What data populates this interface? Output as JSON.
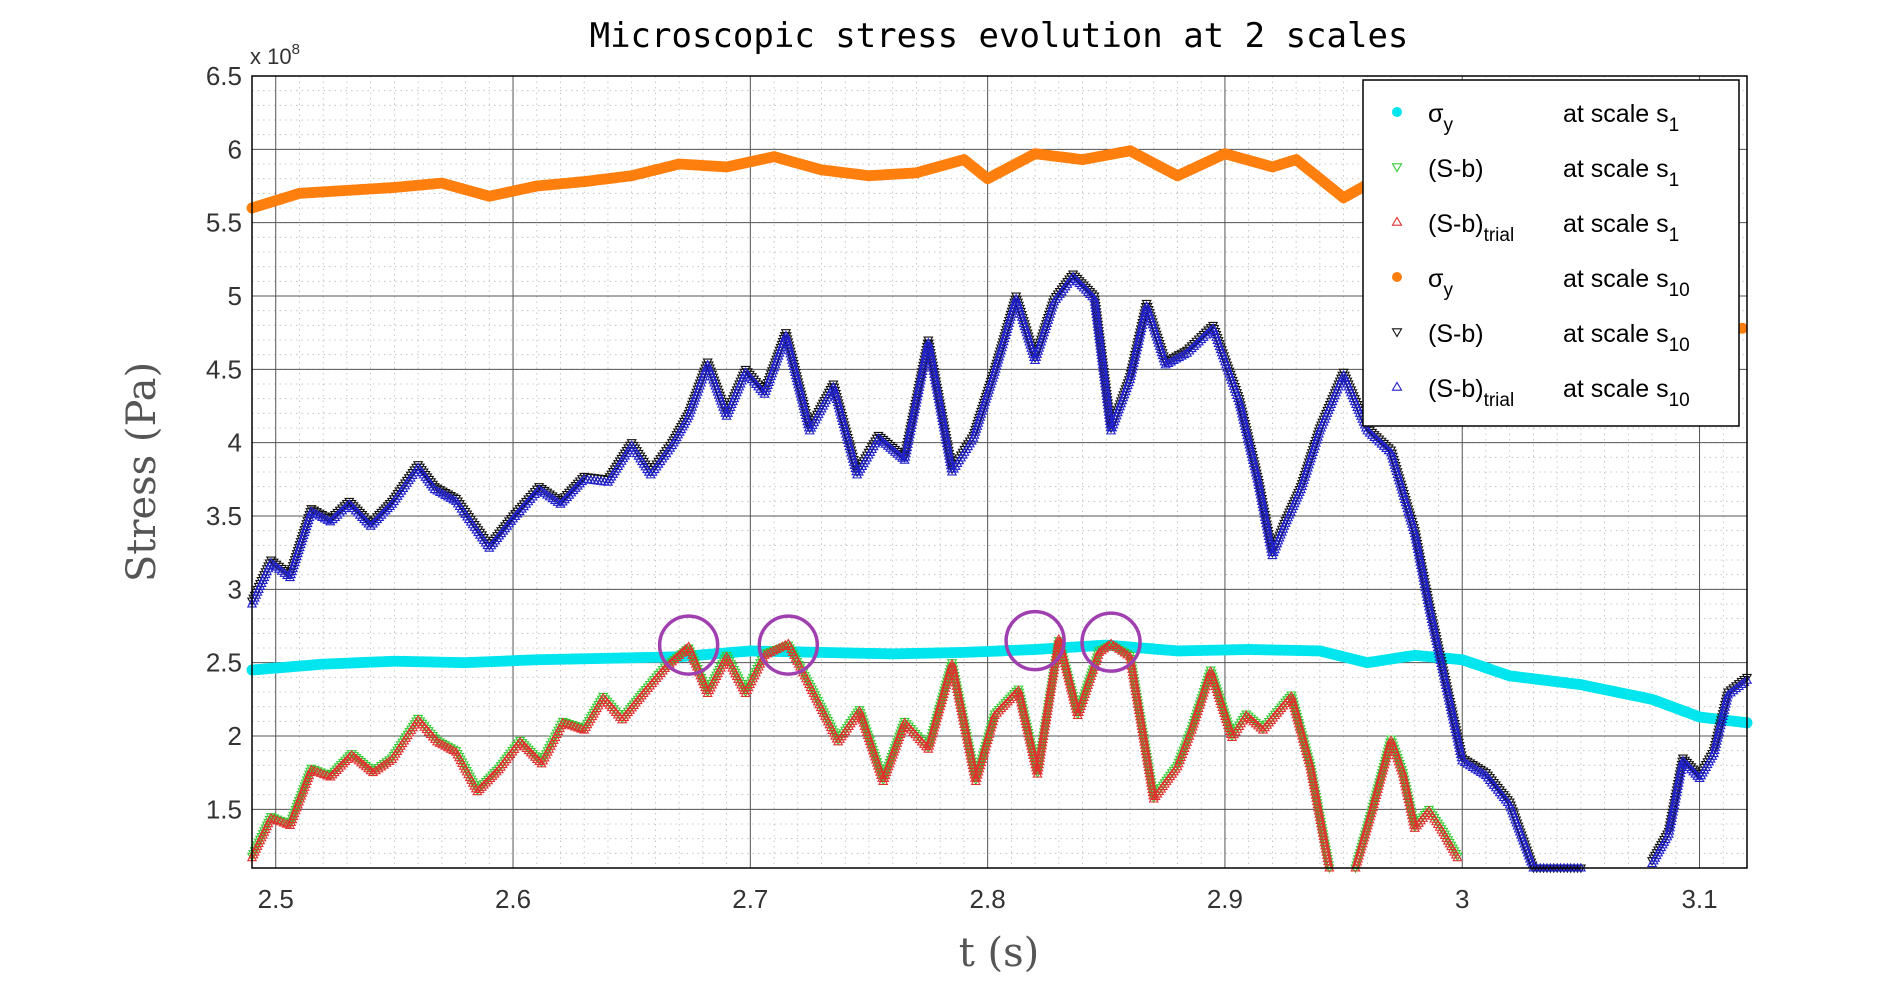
{
  "chart_data": {
    "type": "scatter",
    "title": "Microscopic stress evolution at 2 scales",
    "xlabel": "t (s)",
    "ylabel": "Stress (Pa)",
    "y_multiplier_label": "x 10",
    "y_multiplier_exponent": "8",
    "xlim": [
      2.49,
      3.12
    ],
    "ylim": [
      1.1,
      6.5
    ],
    "x_ticks": [
      "2.5",
      "2.6",
      "2.7",
      "2.8",
      "2.9",
      "3",
      "3.1"
    ],
    "x_tick_values": [
      2.5,
      2.6,
      2.7,
      2.8,
      2.9,
      3.0,
      3.1
    ],
    "y_ticks": [
      "1.5",
      "2",
      "2.5",
      "3",
      "3.5",
      "4",
      "4.5",
      "5",
      "5.5",
      "6",
      "6.5"
    ],
    "y_tick_values": [
      1.5,
      2.0,
      2.5,
      3.0,
      3.5,
      4.0,
      4.5,
      5.0,
      5.5,
      6.0,
      6.5
    ],
    "y_unit_scale": "1e8 Pa",
    "grid": true,
    "legend_position": "top-right",
    "series": [
      {
        "name": "σy at scale s1",
        "legend_main": "σ",
        "legend_sub": "y",
        "legend_suffix": "at scale s",
        "legend_suffix_sub": "1",
        "color": "#00e5ee",
        "marker": "dot",
        "x": [
          2.49,
          2.52,
          2.55,
          2.58,
          2.61,
          2.64,
          2.67,
          2.7,
          2.73,
          2.76,
          2.79,
          2.82,
          2.85,
          2.88,
          2.91,
          2.94,
          2.96,
          2.98,
          3.0,
          3.02,
          3.05,
          3.08,
          3.1,
          3.12
        ],
        "y": [
          2.45,
          2.49,
          2.51,
          2.5,
          2.52,
          2.53,
          2.54,
          2.58,
          2.57,
          2.56,
          2.57,
          2.59,
          2.62,
          2.58,
          2.59,
          2.58,
          2.5,
          2.55,
          2.52,
          2.41,
          2.35,
          2.25,
          2.13,
          2.09
        ]
      },
      {
        "name": "(S-b) at scale s1",
        "legend_main": "(S-b)",
        "legend_sub": "",
        "legend_suffix": "at scale s",
        "legend_suffix_sub": "1",
        "color": "#33cc33",
        "marker": "triangle-down",
        "segments": [
          {
            "x": [
              2.49,
              2.498,
              2.506,
              2.515,
              2.523,
              2.532,
              2.541,
              2.549,
              2.56,
              2.568,
              2.576,
              2.585,
              2.594,
              2.603,
              2.612,
              2.621,
              2.63,
              2.638,
              2.646,
              2.655,
              2.664,
              2.674,
              2.682,
              2.69,
              2.698,
              2.706,
              2.716,
              2.726,
              2.737,
              2.746,
              2.756,
              2.765,
              2.775,
              2.785,
              2.795,
              2.803,
              2.813,
              2.821,
              2.83,
              2.838,
              2.847,
              2.852,
              2.86,
              2.87,
              2.88,
              2.886,
              2.894,
              2.903,
              2.909,
              2.916,
              2.928,
              2.936,
              2.944
            ],
            "y": [
              1.18,
              1.45,
              1.4,
              1.78,
              1.73,
              1.88,
              1.76,
              1.85,
              2.12,
              1.97,
              1.9,
              1.63,
              1.78,
              1.97,
              1.82,
              2.1,
              2.05,
              2.27,
              2.12,
              2.3,
              2.47,
              2.6,
              2.3,
              2.55,
              2.3,
              2.56,
              2.62,
              2.32,
              1.97,
              2.18,
              1.7,
              2.1,
              1.92,
              2.5,
              1.7,
              2.15,
              2.32,
              1.75,
              2.65,
              2.15,
              2.58,
              2.62,
              2.55,
              1.58,
              1.8,
              2.05,
              2.45,
              2.0,
              2.15,
              2.05,
              2.28,
              1.8,
              1.1
            ]
          },
          {
            "x": [
              2.955,
              2.962,
              2.97,
              2.975,
              2.98,
              2.986,
              2.992,
              2.998
            ],
            "y": [
              1.1,
              1.5,
              1.98,
              1.75,
              1.38,
              1.5,
              1.35,
              1.18
            ]
          }
        ]
      },
      {
        "name": "(S-b)trial at scale s1",
        "legend_main": "(S-b)",
        "legend_sub": "trial",
        "legend_suffix": "at scale s",
        "legend_suffix_sub": "1",
        "color": "#e03030",
        "marker": "triangle-up",
        "segments": [
          {
            "x": [
              2.49,
              2.498,
              2.506,
              2.515,
              2.523,
              2.532,
              2.541,
              2.549,
              2.56,
              2.568,
              2.576,
              2.585,
              2.594,
              2.603,
              2.612,
              2.621,
              2.63,
              2.638,
              2.646,
              2.655,
              2.664,
              2.674,
              2.682,
              2.69,
              2.698,
              2.706,
              2.716,
              2.726,
              2.737,
              2.746,
              2.756,
              2.765,
              2.775,
              2.785,
              2.795,
              2.803,
              2.813,
              2.821,
              2.83,
              2.838,
              2.847,
              2.852,
              2.86,
              2.87,
              2.88,
              2.886,
              2.894,
              2.903,
              2.909,
              2.916,
              2.928,
              2.936,
              2.944
            ],
            "y": [
              1.17,
              1.44,
              1.39,
              1.77,
              1.72,
              1.87,
              1.75,
              1.84,
              2.11,
              1.96,
              1.89,
              1.62,
              1.77,
              1.96,
              1.81,
              2.09,
              2.04,
              2.26,
              2.11,
              2.29,
              2.46,
              2.61,
              2.29,
              2.54,
              2.29,
              2.55,
              2.63,
              2.31,
              1.96,
              2.17,
              1.69,
              2.09,
              1.91,
              2.49,
              1.69,
              2.14,
              2.31,
              1.74,
              2.66,
              2.14,
              2.57,
              2.63,
              2.54,
              1.57,
              1.79,
              2.04,
              2.44,
              1.99,
              2.14,
              2.04,
              2.27,
              1.79,
              1.1
            ]
          },
          {
            "x": [
              2.955,
              2.962,
              2.97,
              2.975,
              2.98,
              2.986,
              2.992,
              2.998
            ],
            "y": [
              1.1,
              1.49,
              1.97,
              1.74,
              1.37,
              1.49,
              1.34,
              1.17
            ]
          }
        ]
      },
      {
        "name": "σy at scale s10",
        "legend_main": "σ",
        "legend_sub": "y",
        "legend_suffix": "at scale s",
        "legend_suffix_sub": "10",
        "color": "#ff7f0e",
        "marker": "dot",
        "x": [
          2.49,
          2.51,
          2.53,
          2.55,
          2.57,
          2.59,
          2.61,
          2.63,
          2.65,
          2.67,
          2.69,
          2.71,
          2.73,
          2.75,
          2.77,
          2.79,
          2.8,
          2.82,
          2.84,
          2.86,
          2.88,
          2.9,
          2.92,
          2.93,
          2.95,
          2.96
        ],
        "y": [
          5.6,
          5.7,
          5.72,
          5.74,
          5.77,
          5.68,
          5.75,
          5.78,
          5.82,
          5.9,
          5.88,
          5.95,
          5.86,
          5.82,
          5.84,
          5.93,
          5.8,
          5.97,
          5.93,
          5.99,
          5.82,
          5.97,
          5.88,
          5.93,
          5.67,
          5.76
        ]
      },
      {
        "name": "(S-b) at scale s10",
        "legend_main": "(S-b)",
        "legend_sub": "",
        "legend_suffix": "at scale s",
        "legend_suffix_sub": "10",
        "color": "#111111",
        "marker": "triangle-down",
        "segments": [
          {
            "x": [
              2.49,
              2.498,
              2.506,
              2.515,
              2.523,
              2.531,
              2.54,
              2.549,
              2.56,
              2.567,
              2.576,
              2.59,
              2.6,
              2.611,
              2.62,
              2.63,
              2.64,
              2.65,
              2.658,
              2.667,
              2.674,
              2.682,
              2.69,
              2.698,
              2.706,
              2.715,
              2.725,
              2.735,
              2.745,
              2.754,
              2.765,
              2.775,
              2.785,
              2.794,
              2.803,
              2.812,
              2.82,
              2.828,
              2.836,
              2.845,
              2.852,
              2.86,
              2.867,
              2.875,
              2.884,
              2.895,
              2.906,
              2.914,
              2.92,
              2.925,
              2.932,
              2.94,
              2.95,
              2.96,
              2.97,
              2.98,
              2.986,
              2.992,
              3.0,
              3.01,
              3.02,
              3.03,
              3.04,
              3.05
            ],
            "y": [
              2.92,
              3.2,
              3.1,
              3.55,
              3.48,
              3.6,
              3.45,
              3.6,
              3.85,
              3.7,
              3.62,
              3.3,
              3.5,
              3.7,
              3.6,
              3.77,
              3.75,
              4.0,
              3.8,
              4.0,
              4.2,
              4.55,
              4.2,
              4.5,
              4.35,
              4.75,
              4.1,
              4.4,
              3.8,
              4.05,
              3.9,
              4.7,
              3.82,
              4.05,
              4.5,
              5.0,
              4.58,
              4.98,
              5.15,
              5.0,
              4.1,
              4.45,
              4.95,
              4.55,
              4.63,
              4.8,
              4.3,
              3.75,
              3.25,
              3.45,
              3.7,
              4.1,
              4.48,
              4.1,
              3.95,
              3.4,
              2.9,
              2.45,
              1.85,
              1.75,
              1.55,
              1.1,
              1.1,
              1.1
            ]
          },
          {
            "x": [
              3.08,
              3.087,
              3.093,
              3.1,
              3.106,
              3.112,
              3.12
            ],
            "y": [
              1.15,
              1.35,
              1.85,
              1.73,
              1.9,
              2.3,
              2.4
            ]
          }
        ]
      },
      {
        "name": "(S-b)trial at scale s10",
        "legend_main": "(S-b)",
        "legend_sub": "trial",
        "legend_suffix": "at scale s",
        "legend_suffix_sub": "10",
        "color": "#2020cc",
        "marker": "triangle-up",
        "segments": [
          {
            "x": [
              2.49,
              2.498,
              2.506,
              2.515,
              2.523,
              2.531,
              2.54,
              2.549,
              2.56,
              2.567,
              2.576,
              2.59,
              2.6,
              2.611,
              2.62,
              2.63,
              2.64,
              2.65,
              2.658,
              2.667,
              2.674,
              2.682,
              2.69,
              2.698,
              2.706,
              2.715,
              2.725,
              2.735,
              2.745,
              2.754,
              2.765,
              2.775,
              2.785,
              2.794,
              2.803,
              2.812,
              2.82,
              2.828,
              2.836,
              2.845,
              2.852,
              2.86,
              2.867,
              2.875,
              2.884,
              2.895,
              2.906,
              2.914,
              2.92,
              2.925,
              2.932,
              2.94,
              2.95,
              2.96,
              2.97,
              2.98,
              2.986,
              2.992,
              3.0,
              3.01,
              3.02,
              3.03,
              3.04,
              3.05
            ],
            "y": [
              2.9,
              3.18,
              3.08,
              3.53,
              3.46,
              3.58,
              3.43,
              3.58,
              3.83,
              3.68,
              3.6,
              3.28,
              3.48,
              3.68,
              3.58,
              3.75,
              3.73,
              3.98,
              3.78,
              3.98,
              4.18,
              4.53,
              4.18,
              4.48,
              4.33,
              4.73,
              4.08,
              4.38,
              3.78,
              4.03,
              3.88,
              4.68,
              3.8,
              4.03,
              4.48,
              4.98,
              4.56,
              4.96,
              5.13,
              4.98,
              4.08,
              4.43,
              4.93,
              4.53,
              4.61,
              4.78,
              4.28,
              3.73,
              3.23,
              3.43,
              3.68,
              4.08,
              4.46,
              4.08,
              3.93,
              3.38,
              2.88,
              2.43,
              1.83,
              1.73,
              1.53,
              1.1,
              1.1,
              1.1
            ]
          },
          {
            "x": [
              3.08,
              3.087,
              3.093,
              3.1,
              3.106,
              3.112,
              3.12
            ],
            "y": [
              1.13,
              1.33,
              1.83,
              1.71,
              1.88,
              2.28,
              2.38
            ]
          }
        ]
      }
    ],
    "highlight_circles": {
      "color": "#a040b0",
      "points": [
        {
          "x": 2.674,
          "y": 2.62
        },
        {
          "x": 2.716,
          "y": 2.62
        },
        {
          "x": 2.82,
          "y": 2.65
        },
        {
          "x": 2.852,
          "y": 2.64
        }
      ]
    },
    "offlegend_point": {
      "x": 3.118,
      "y": 4.78,
      "color": "#ff7f0e"
    }
  }
}
